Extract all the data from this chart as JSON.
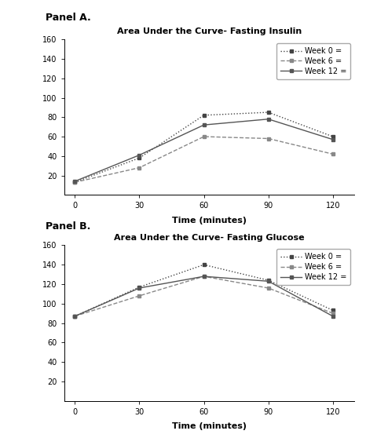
{
  "panel_a": {
    "title": "Area Under the Curve- Fasting Insulin",
    "xlabel": "Time (minutes)",
    "x": [
      0,
      30,
      60,
      90,
      120
    ],
    "week0": [
      13,
      38,
      82,
      85,
      60
    ],
    "week6": [
      13,
      28,
      60,
      58,
      42
    ],
    "week12": [
      14,
      41,
      72,
      78,
      57
    ],
    "ylim": [
      0,
      160
    ],
    "yticks": [
      20,
      40,
      60,
      80,
      100,
      120,
      140,
      160
    ],
    "xticks": [
      0,
      30,
      60,
      90,
      120
    ]
  },
  "panel_b": {
    "title": "Area Under the Curve- Fasting Glucose",
    "xlabel": "Time (minutes)",
    "x": [
      0,
      30,
      60,
      90,
      120
    ],
    "week0": [
      87,
      117,
      140,
      124,
      93
    ],
    "week6": [
      87,
      108,
      128,
      116,
      90
    ],
    "week12": [
      87,
      116,
      128,
      123,
      87
    ],
    "ylim": [
      0,
      160
    ],
    "yticks": [
      20,
      40,
      60,
      80,
      100,
      120,
      140,
      160
    ],
    "xticks": [
      0,
      30,
      60,
      90,
      120
    ]
  },
  "legend_labels": [
    "Week 0 =",
    "Week 6 =",
    "Week 12 ="
  ],
  "line_styles_a": [
    "dotted",
    "--",
    "-"
  ],
  "line_styles_b": [
    "dotted",
    "--",
    "-"
  ],
  "line_colors": [
    "#444444",
    "#888888",
    "#555555"
  ],
  "panel_label_fontsize": 9,
  "title_fontsize": 8,
  "tick_fontsize": 7,
  "legend_fontsize": 7,
  "axis_label_fontsize": 8,
  "background_color": "#ffffff"
}
